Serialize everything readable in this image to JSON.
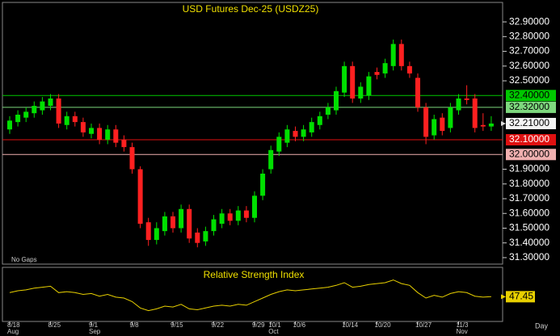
{
  "chart_data": [
    {
      "type": "candlestick",
      "title": "USD Futures Dec-25 (USDZ25)",
      "annotation": "No Gaps",
      "period_label": "Day",
      "up_color": "#00e000",
      "down_color": "#ff2020",
      "categories": [
        "8/18",
        null,
        null,
        null,
        null,
        "8/25",
        null,
        null,
        null,
        null,
        "9/1",
        null,
        null,
        null,
        null,
        "9/8",
        null,
        null,
        null,
        null,
        "9/15",
        null,
        null,
        null,
        null,
        "9/22",
        null,
        null,
        null,
        null,
        "9/29",
        null,
        "10/1",
        null,
        null,
        "10/6",
        null,
        null,
        null,
        null,
        null,
        "10/14",
        null,
        null,
        null,
        "10/20",
        null,
        null,
        null,
        null,
        "10/27",
        null,
        null,
        null,
        null,
        "11/3",
        null,
        null,
        null,
        null
      ],
      "months": [
        "Aug",
        null,
        null,
        null,
        null,
        null,
        null,
        null,
        null,
        null,
        "Sep",
        null,
        null,
        null,
        null,
        null,
        null,
        null,
        null,
        null,
        null,
        null,
        null,
        null,
        null,
        null,
        null,
        null,
        null,
        null,
        null,
        null,
        "Oct",
        null,
        null,
        null,
        null,
        null,
        null,
        null,
        null,
        null,
        null,
        null,
        null,
        null,
        null,
        null,
        null,
        null,
        null,
        null,
        null,
        null,
        null,
        "Nov",
        null,
        null,
        null,
        null
      ],
      "open": [
        32.17,
        32.22,
        32.25,
        32.28,
        32.3,
        32.33,
        32.38,
        32.2,
        32.26,
        32.22,
        32.14,
        32.18,
        32.1,
        32.17,
        32.1,
        32.05,
        31.9,
        31.54,
        31.42,
        31.48,
        31.58,
        31.5,
        31.63,
        31.47,
        31.41,
        31.48,
        31.53,
        31.6,
        31.55,
        31.62,
        31.57,
        31.72,
        31.9,
        32.02,
        32.08,
        32.16,
        32.12,
        32.15,
        32.2,
        32.27,
        32.3,
        32.42,
        32.6,
        32.38,
        32.4,
        32.56,
        32.55,
        32.6,
        32.75,
        32.6,
        32.52,
        32.32,
        32.13,
        32.25,
        32.18,
        32.3,
        32.38,
        32.38,
        32.2,
        32.19
      ],
      "high": [
        32.26,
        32.3,
        32.32,
        32.36,
        32.39,
        32.41,
        32.41,
        32.29,
        32.29,
        32.25,
        32.21,
        32.21,
        32.2,
        32.2,
        32.13,
        32.08,
        31.92,
        31.57,
        31.54,
        31.61,
        31.61,
        31.66,
        31.66,
        31.5,
        31.51,
        31.59,
        31.63,
        31.63,
        31.65,
        31.65,
        31.75,
        31.9,
        32.06,
        32.15,
        32.2,
        32.19,
        32.2,
        32.25,
        32.29,
        32.35,
        32.46,
        32.63,
        32.63,
        32.49,
        32.56,
        32.59,
        32.65,
        32.78,
        32.78,
        32.63,
        32.55,
        32.35,
        32.27,
        32.28,
        32.35,
        32.41,
        32.47,
        32.41,
        32.28,
        32.26
      ],
      "low": [
        32.14,
        32.19,
        32.22,
        32.25,
        32.27,
        32.3,
        32.18,
        32.17,
        32.19,
        32.12,
        32.11,
        32.07,
        32.07,
        32.05,
        32.02,
        31.87,
        31.5,
        31.38,
        31.39,
        31.45,
        31.47,
        31.47,
        31.4,
        31.37,
        31.38,
        31.45,
        31.5,
        31.52,
        31.52,
        31.54,
        31.54,
        31.69,
        31.87,
        31.99,
        32.05,
        32.09,
        32.09,
        32.12,
        32.17,
        32.24,
        32.27,
        32.39,
        32.35,
        32.35,
        32.37,
        32.51,
        32.52,
        32.57,
        32.57,
        32.52,
        32.29,
        32.07,
        32.1,
        32.13,
        32.15,
        32.27,
        32.34,
        32.15,
        32.16,
        32.16
      ],
      "close": [
        32.23,
        32.27,
        32.29,
        32.33,
        32.36,
        32.38,
        32.21,
        32.26,
        32.22,
        32.15,
        32.18,
        32.1,
        32.17,
        32.08,
        32.05,
        31.9,
        31.53,
        31.42,
        31.5,
        31.58,
        31.5,
        31.63,
        31.43,
        31.4,
        31.48,
        31.56,
        31.6,
        31.55,
        31.62,
        31.57,
        31.72,
        31.87,
        32.03,
        32.12,
        32.17,
        32.12,
        32.17,
        32.22,
        32.26,
        32.32,
        32.43,
        32.6,
        32.38,
        32.46,
        32.53,
        32.54,
        32.62,
        32.75,
        32.6,
        32.55,
        32.32,
        32.12,
        32.24,
        32.16,
        32.32,
        32.38,
        32.37,
        32.18,
        32.19,
        32.21
      ],
      "ylim": [
        31.256,
        33.032
      ],
      "yticks": [
        {
          "value": 32.9,
          "label": "32.90000"
        },
        {
          "value": 32.8,
          "label": "32.80000"
        },
        {
          "value": 32.7,
          "label": "32.70000"
        },
        {
          "value": 32.6,
          "label": "32.60000"
        },
        {
          "value": 32.5,
          "label": "32.50000"
        },
        {
          "value": 31.9,
          "label": "31.90000"
        },
        {
          "value": 31.8,
          "label": "31.80000"
        },
        {
          "value": 31.7,
          "label": "31.70000"
        },
        {
          "value": 31.6,
          "label": "31.60000"
        },
        {
          "value": 31.5,
          "label": "31.50000"
        },
        {
          "value": 31.4,
          "label": "31.40000"
        },
        {
          "value": 31.3,
          "label": "31.30000"
        }
      ],
      "reference_lines": [
        {
          "value": 32.4,
          "label": "32.40000",
          "color": "#00c800"
        },
        {
          "value": 32.32,
          "label": "32.32000",
          "color": "#7ed87e"
        },
        {
          "value": 32.1,
          "label": "32.10000",
          "color": "#e01010"
        },
        {
          "value": 32.0,
          "label": "32.00000",
          "color": "#f0b0b0"
        }
      ],
      "last_price": {
        "value": 32.21,
        "label": "32.21000"
      }
    },
    {
      "type": "line",
      "title": "Relative Strength Index",
      "color": "#e8d000",
      "ylim": [
        20,
        80
      ],
      "values": [
        52,
        54,
        55,
        57,
        58,
        59,
        52,
        53,
        52,
        50,
        51,
        48,
        50,
        47,
        46,
        42,
        35,
        32,
        34,
        37,
        36,
        39,
        34,
        33,
        35,
        37,
        38,
        37,
        39,
        38,
        42,
        46,
        50,
        53,
        55,
        54,
        55,
        56,
        57,
        58,
        60,
        63,
        58,
        59,
        61,
        62,
        63,
        66,
        62,
        60,
        52,
        46,
        49,
        47,
        51,
        53,
        52,
        48,
        47,
        47.45
      ]
    }
  ]
}
